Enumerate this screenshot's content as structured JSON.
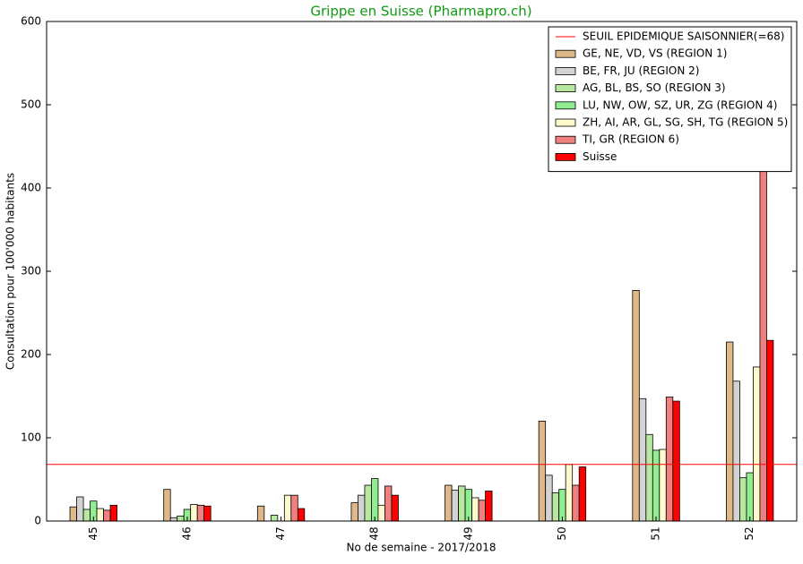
{
  "chart_data": {
    "type": "bar",
    "title": "Grippe en Suisse (Pharmapro.ch)",
    "x_label": "No de semaine - 2017/2018",
    "y_label": "Consultation pour 100'000 habitants",
    "categories": [
      "45",
      "46",
      "47",
      "48",
      "49",
      "50",
      "51",
      "52"
    ],
    "ylim": [
      0,
      600
    ],
    "yticks": [
      0,
      100,
      200,
      300,
      400,
      500,
      600
    ],
    "threshold": {
      "name": "SEUIL EPIDEMIQUE SAISONNIER(=68)",
      "value": 68,
      "color": "#ff0000"
    },
    "series": [
      {
        "name": "GE, NE, VD, VS (REGION 1)",
        "color": "#deb887",
        "values": [
          17,
          38,
          18,
          22,
          43,
          120,
          277,
          215
        ]
      },
      {
        "name": "BE, FR, JU (REGION 2)",
        "color": "#d3d3d3",
        "values": [
          29,
          4,
          0,
          31,
          37,
          55,
          147,
          168
        ]
      },
      {
        "name": "AG, BL, BS, SO (REGION 3)",
        "color": "#b8e8a0",
        "values": [
          14,
          6,
          7,
          43,
          42,
          34,
          104,
          52
        ]
      },
      {
        "name": "LU, NW, OW, SZ, UR, ZG (REGION 4)",
        "color": "#90ee90",
        "values": [
          24,
          14,
          0,
          51,
          38,
          38,
          85,
          58
        ]
      },
      {
        "name": "ZH, AI, AR, GL, SG, SH, TG (REGION 5)",
        "color": "#fffacd",
        "values": [
          15,
          20,
          31,
          19,
          28,
          68,
          86,
          185
        ]
      },
      {
        "name": "TI, GR (REGION 6)",
        "color": "#f08080",
        "values": [
          13,
          19,
          31,
          42,
          25,
          43,
          149,
          480
        ]
      },
      {
        "name": "Suisse",
        "color": "#ff0000",
        "values": [
          19,
          18,
          15,
          31,
          36,
          65,
          144,
          217
        ]
      }
    ]
  }
}
